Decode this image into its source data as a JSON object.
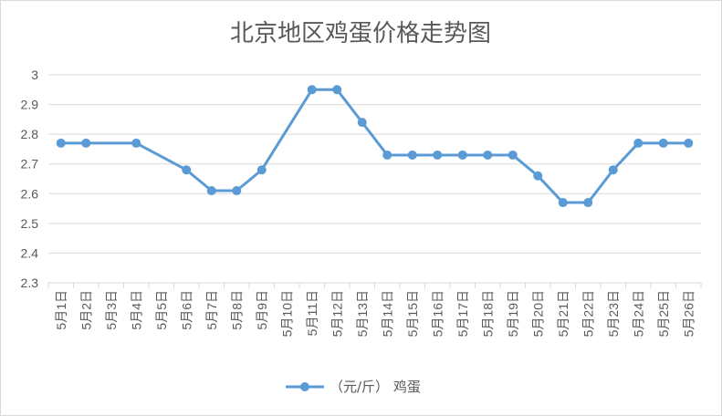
{
  "chart_data": {
    "type": "line",
    "title": "北京地区鸡蛋价格走势图",
    "categories": [
      "5月1日",
      "5月2日",
      "5月3日",
      "5月4日",
      "5月5日",
      "5月6日",
      "5月7日",
      "5月8日",
      "5月9日",
      "5月10日",
      "5月11日",
      "5月12日",
      "5月13日",
      "5月14日",
      "5月15日",
      "5月16日",
      "5月17日",
      "5月18日",
      "5月19日",
      "5月20日",
      "5月21日",
      "5月22日",
      "5月23日",
      "5月24日",
      "5月25日",
      "5月26日"
    ],
    "series": [
      {
        "name": "（元/斤） 鸡蛋",
        "values": [
          2.77,
          2.77,
          null,
          2.77,
          null,
          2.68,
          2.61,
          2.61,
          2.68,
          null,
          2.95,
          2.95,
          2.84,
          2.73,
          2.73,
          2.73,
          2.73,
          2.73,
          2.73,
          2.66,
          2.57,
          2.57,
          2.68,
          2.77,
          2.77,
          2.77
        ]
      }
    ],
    "ylim": [
      2.3,
      3.0
    ],
    "yticks": [
      "2.3",
      "2.4",
      "2.5",
      "2.6",
      "2.7",
      "2.8",
      "2.9",
      "3"
    ],
    "xlabel": "",
    "ylabel": "",
    "grid": true,
    "legend_position": "bottom",
    "line_color": "#5b9bd5",
    "grid_color": "#d9d9d9",
    "text_color": "#595959"
  }
}
